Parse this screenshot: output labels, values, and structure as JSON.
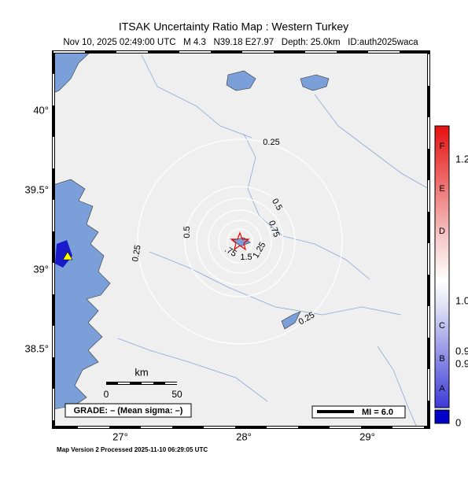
{
  "header": {
    "title": "ITSAK Uncertainty Ratio Map : Western Turkey",
    "subtitle": "Nov 10, 2025 02:49:00 UTC   M 4.3   N39.18 E27.97   Depth: 25.0km   ID:auth2025waca"
  },
  "axes": {
    "lat_labels": [
      "40°",
      "39.5°",
      "39°",
      "38.5°"
    ],
    "lon_labels": [
      "27°",
      "28°",
      "29°"
    ]
  },
  "contours": [
    "0.25",
    "0.5",
    "0.75",
    "0.5",
    "0.25",
    "0.25",
    "1.5",
    "1.25",
    ".75"
  ],
  "scale": {
    "unit": "km",
    "start": "0",
    "end": "50"
  },
  "grade": "GRADE: – (Mean sigma: –)",
  "legend": "MI = 6.0",
  "colorbar": {
    "letters": [
      "F",
      "E",
      "D",
      "C",
      "B",
      "A"
    ],
    "values": [
      "1.2",
      "1.0",
      "0.9",
      "0.9",
      "0"
    ]
  },
  "footer": "Map Version 2 Processed 2025-11-10 06:29:05 UTC"
}
